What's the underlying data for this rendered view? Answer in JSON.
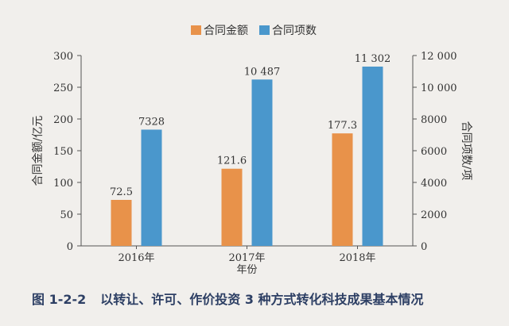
{
  "chart_data": {
    "type": "bar",
    "categories": [
      "2016年",
      "2017年",
      "2018年"
    ],
    "xlabel": "年份",
    "series": [
      {
        "name": "合同金额",
        "axis": "left",
        "color": "#e8924a",
        "values": [
          72.5,
          121.6,
          177.3
        ],
        "labels": [
          "72.5",
          "121.6",
          "177.3"
        ]
      },
      {
        "name": "合同项数",
        "axis": "right",
        "color": "#4a97cc",
        "values": [
          7328,
          10487,
          11302
        ],
        "labels": [
          "7328",
          "10 487",
          "11 302"
        ]
      }
    ],
    "y_left": {
      "label": "合同金额/亿元",
      "range": [
        0,
        300
      ],
      "ticks": [
        0,
        50,
        100,
        150,
        200,
        250,
        300
      ],
      "tick_labels": [
        "0",
        "50",
        "100",
        "150",
        "200",
        "250",
        "300"
      ]
    },
    "y_right": {
      "label": "合同项数/项",
      "range": [
        0,
        12000
      ],
      "ticks": [
        0,
        2000,
        4000,
        6000,
        8000,
        10000,
        12000
      ],
      "tick_labels": [
        "0",
        "2000",
        "4000",
        "6000",
        "8000",
        "10 000",
        "12 000"
      ]
    },
    "grid": false,
    "legend_position": "top-center"
  },
  "caption": {
    "number": "图 1-2-2",
    "text": "以转让、许可、作价投资 3 种方式转化科技成果基本情况"
  }
}
